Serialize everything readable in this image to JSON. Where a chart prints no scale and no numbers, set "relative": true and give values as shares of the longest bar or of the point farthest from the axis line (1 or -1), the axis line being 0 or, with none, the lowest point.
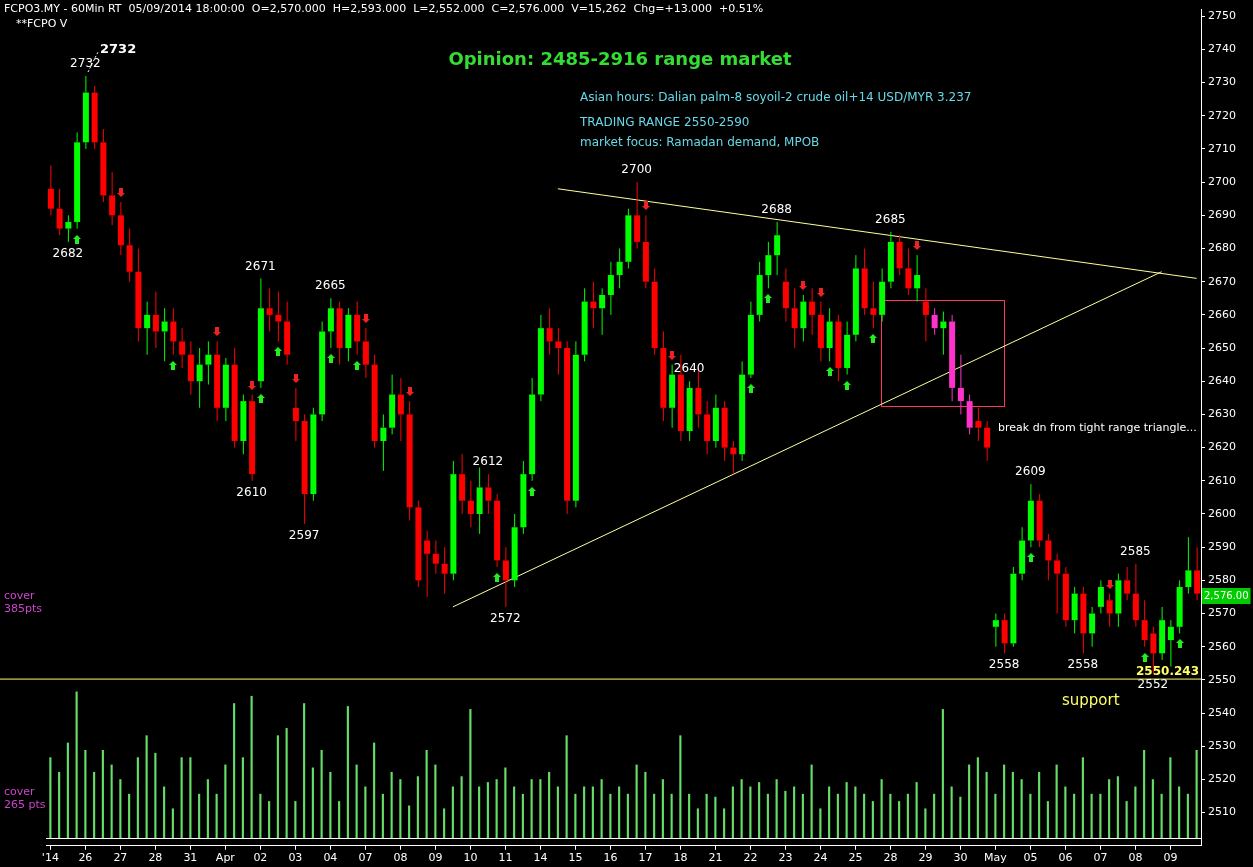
{
  "chart_data": [
    {
      "type": "candlestick",
      "title": "Opinion: 2485-2916 range market",
      "subtitle": "FCPO3.MY - 60Min RT  05/09/2014 18:00:00  O=2,570.000  H=2,593.000  L=2,552.000  C=2,576.000  V=15,262  Chg=+13.000  +0.51%",
      "categories": [
        "'14",
        null,
        null,
        null,
        "26",
        null,
        null,
        null,
        "27",
        null,
        null,
        null,
        "28",
        null,
        null,
        null,
        "31",
        null,
        null,
        null,
        "Apr",
        null,
        null,
        null,
        "02",
        null,
        null,
        null,
        "03",
        null,
        null,
        null,
        "04",
        null,
        null,
        null,
        "07",
        null,
        null,
        null,
        "08",
        null,
        null,
        null,
        "09",
        null,
        null,
        null,
        "10",
        null,
        null,
        null,
        "11",
        null,
        null,
        null,
        "14",
        null,
        null,
        null,
        "15",
        null,
        null,
        null,
        "16",
        null,
        null,
        null,
        "17",
        null,
        null,
        null,
        "18",
        null,
        null,
        null,
        "21",
        null,
        null,
        null,
        "22",
        null,
        null,
        null,
        "23",
        null,
        null,
        null,
        "24",
        null,
        null,
        null,
        "25",
        null,
        null,
        null,
        "28",
        null,
        null,
        null,
        "29",
        null,
        null,
        null,
        "30",
        null,
        null,
        null,
        "May",
        null,
        null,
        null,
        "05",
        null,
        null,
        null,
        "06",
        null,
        null,
        null,
        "07",
        null,
        null,
        null,
        "08",
        null,
        null,
        null,
        "09",
        null,
        null,
        null
      ],
      "ohlc": [
        [
          2698,
          2705,
          2690,
          2692
        ],
        [
          2692,
          2698,
          2684,
          2686
        ],
        [
          2686,
          2690,
          2682,
          2688
        ],
        [
          2688,
          2715,
          2686,
          2712
        ],
        [
          2712,
          2732,
          2710,
          2727
        ],
        [
          2727,
          2729,
          2710,
          2712
        ],
        [
          2712,
          2716,
          2694,
          2696
        ],
        [
          2696,
          2703,
          2687,
          2690
        ],
        [
          2690,
          2694,
          2678,
          2681
        ],
        [
          2681,
          2686,
          2670,
          2673
        ],
        [
          2673,
          2680,
          2652,
          2656
        ],
        [
          2656,
          2664,
          2648,
          2660
        ],
        [
          2660,
          2667,
          2650,
          2655
        ],
        [
          2655,
          2662,
          2646,
          2658
        ],
        [
          2658,
          2662,
          2648,
          2652
        ],
        [
          2652,
          2656,
          2644,
          2648
        ],
        [
          2648,
          2652,
          2636,
          2640
        ],
        [
          2640,
          2650,
          2632,
          2645
        ],
        [
          2645,
          2652,
          2639,
          2648
        ],
        [
          2648,
          2652,
          2628,
          2632
        ],
        [
          2632,
          2647,
          2628,
          2645
        ],
        [
          2645,
          2650,
          2620,
          2622
        ],
        [
          2622,
          2636,
          2618,
          2634
        ],
        [
          2634,
          2636,
          2610,
          2612
        ],
        [
          2640,
          2671,
          2638,
          2662
        ],
        [
          2662,
          2668,
          2655,
          2660
        ],
        [
          2660,
          2667,
          2652,
          2658
        ],
        [
          2658,
          2664,
          2645,
          2648
        ],
        [
          2632,
          2638,
          2622,
          2628
        ],
        [
          2628,
          2630,
          2597,
          2606
        ],
        [
          2606,
          2632,
          2604,
          2630
        ],
        [
          2630,
          2658,
          2628,
          2655
        ],
        [
          2655,
          2665,
          2650,
          2662
        ],
        [
          2662,
          2664,
          2645,
          2650
        ],
        [
          2650,
          2662,
          2646,
          2660
        ],
        [
          2660,
          2664,
          2648,
          2652
        ],
        [
          2652,
          2656,
          2641,
          2645
        ],
        [
          2645,
          2648,
          2620,
          2622
        ],
        [
          2622,
          2630,
          2613,
          2626
        ],
        [
          2626,
          2642,
          2624,
          2636
        ],
        [
          2636,
          2641,
          2622,
          2630
        ],
        [
          2630,
          2634,
          2598,
          2602
        ],
        [
          2602,
          2604,
          2578,
          2580
        ],
        [
          2592,
          2595,
          2575,
          2588
        ],
        [
          2588,
          2592,
          2582,
          2585
        ],
        [
          2585,
          2590,
          2576,
          2582
        ],
        [
          2582,
          2616,
          2580,
          2612
        ],
        [
          2612,
          2618,
          2600,
          2604
        ],
        [
          2604,
          2610,
          2596,
          2600
        ],
        [
          2600,
          2614,
          2594,
          2608
        ],
        [
          2608,
          2612,
          2600,
          2604
        ],
        [
          2604,
          2606,
          2584,
          2586
        ],
        [
          2586,
          2590,
          2572,
          2580
        ],
        [
          2580,
          2600,
          2578,
          2596
        ],
        [
          2596,
          2616,
          2594,
          2612
        ],
        [
          2612,
          2641,
          2610,
          2636
        ],
        [
          2636,
          2660,
          2634,
          2656
        ],
        [
          2656,
          2662,
          2648,
          2652
        ],
        [
          2652,
          2656,
          2642,
          2650
        ],
        [
          2650,
          2652,
          2600,
          2604
        ],
        [
          2604,
          2652,
          2602,
          2648
        ],
        [
          2648,
          2668,
          2646,
          2664
        ],
        [
          2664,
          2670,
          2656,
          2662
        ],
        [
          2662,
          2668,
          2654,
          2666
        ],
        [
          2666,
          2676,
          2660,
          2672
        ],
        [
          2672,
          2680,
          2668,
          2676
        ],
        [
          2676,
          2692,
          2674,
          2690
        ],
        [
          2690,
          2700,
          2680,
          2682
        ],
        [
          2682,
          2690,
          2668,
          2670
        ],
        [
          2670,
          2674,
          2648,
          2650
        ],
        [
          2650,
          2655,
          2628,
          2632
        ],
        [
          2632,
          2645,
          2626,
          2642
        ],
        [
          2642,
          2648,
          2622,
          2625
        ],
        [
          2625,
          2640,
          2622,
          2638
        ],
        [
          2638,
          2644,
          2626,
          2630
        ],
        [
          2630,
          2634,
          2618,
          2622
        ],
        [
          2622,
          2636,
          2620,
          2632
        ],
        [
          2632,
          2634,
          2616,
          2620
        ],
        [
          2620,
          2622,
          2612,
          2618
        ],
        [
          2618,
          2646,
          2616,
          2642
        ],
        [
          2642,
          2664,
          2641,
          2660
        ],
        [
          2660,
          2676,
          2658,
          2672
        ],
        [
          2672,
          2682,
          2668,
          2678
        ],
        [
          2678,
          2688,
          2672,
          2684
        ],
        [
          2670,
          2674,
          2658,
          2662
        ],
        [
          2662,
          2668,
          2650,
          2656
        ],
        [
          2656,
          2666,
          2652,
          2664
        ],
        [
          2664,
          2668,
          2654,
          2660
        ],
        [
          2660,
          2664,
          2646,
          2650
        ],
        [
          2650,
          2662,
          2646,
          2658
        ],
        [
          2658,
          2660,
          2640,
          2644
        ],
        [
          2644,
          2658,
          2642,
          2654
        ],
        [
          2654,
          2678,
          2652,
          2674
        ],
        [
          2674,
          2680,
          2660,
          2662
        ],
        [
          2662,
          2670,
          2656,
          2660
        ],
        [
          2660,
          2674,
          2658,
          2670
        ],
        [
          2670,
          2685,
          2668,
          2682
        ],
        [
          2682,
          2684,
          2672,
          2674
        ],
        [
          2674,
          2680,
          2666,
          2668
        ],
        [
          2668,
          2678,
          2664,
          2672
        ],
        [
          2664,
          2668,
          2652,
          2660
        ],
        [
          2660,
          2662,
          2654,
          2656
        ],
        [
          2656,
          2661,
          2648,
          2658
        ],
        [
          2658,
          2660,
          2634,
          2638
        ],
        [
          2638,
          2648,
          2630,
          2634
        ],
        [
          2634,
          2636,
          2624,
          2626
        ],
        [
          2628,
          2632,
          2622,
          2626
        ],
        [
          2626,
          2628,
          2616,
          2620
        ],
        [
          2566,
          2570,
          2560,
          2568
        ],
        [
          2568,
          2570,
          2558,
          2561
        ],
        [
          2561,
          2584,
          2560,
          2582
        ],
        [
          2582,
          2596,
          2580,
          2592
        ],
        [
          2592,
          2609,
          2590,
          2604
        ],
        [
          2604,
          2606,
          2590,
          2592
        ],
        [
          2592,
          2594,
          2580,
          2586
        ],
        [
          2586,
          2588,
          2570,
          2582
        ],
        [
          2582,
          2584,
          2566,
          2568
        ],
        [
          2568,
          2578,
          2564,
          2576
        ],
        [
          2576,
          2578,
          2558,
          2564
        ],
        [
          2564,
          2572,
          2560,
          2570
        ],
        [
          2572,
          2580,
          2570,
          2578
        ],
        [
          2574,
          2576,
          2566,
          2570
        ],
        [
          2570,
          2582,
          2566,
          2580
        ],
        [
          2580,
          2584,
          2574,
          2576
        ],
        [
          2576,
          2585,
          2566,
          2568
        ],
        [
          2568,
          2574,
          2560,
          2562
        ],
        [
          2564,
          2566,
          2552,
          2558
        ],
        [
          2558,
          2572,
          2556,
          2568
        ],
        [
          2562,
          2568,
          2554,
          2566
        ],
        [
          2566,
          2580,
          2564,
          2578
        ],
        [
          2578,
          2593,
          2576,
          2583
        ],
        [
          2583,
          2590,
          2574,
          2576
        ]
      ],
      "colors": [
        "#ff0000",
        "#ff0000",
        "#00ff00",
        "#00ff00",
        "#00ff00",
        "#ff0000",
        "#ff0000",
        "#ff0000",
        "#ff0000",
        "#ff0000",
        "#ff0000",
        "#00ff00",
        "#ff0000",
        "#00ff00",
        "#ff0000",
        "#ff0000",
        "#ff0000",
        "#00ff00",
        "#00ff00",
        "#ff0000",
        "#00ff00",
        "#ff0000",
        "#00ff00",
        "#ff0000",
        "#00ff00",
        "#ff0000",
        "#ff0000",
        "#ff0000",
        "#ff0000",
        "#ff0000",
        "#00ff00",
        "#00ff00",
        "#00ff00",
        "#ff0000",
        "#00ff00",
        "#ff0000",
        "#ff0000",
        "#ff0000",
        "#00ff00",
        "#00ff00",
        "#ff0000",
        "#ff0000",
        "#ff0000",
        "#ff0000",
        "#ff0000",
        "#ff0000",
        "#00ff00",
        "#ff0000",
        "#ff0000",
        "#00ff00",
        "#ff0000",
        "#ff0000",
        "#ff0000",
        "#00ff00",
        "#00ff00",
        "#00ff00",
        "#00ff00",
        "#ff0000",
        "#ff0000",
        "#ff0000",
        "#00ff00",
        "#00ff00",
        "#ff0000",
        "#00ff00",
        "#00ff00",
        "#00ff00",
        "#00ff00",
        "#ff0000",
        "#ff0000",
        "#ff0000",
        "#ff0000",
        "#00ff00",
        "#ff0000",
        "#00ff00",
        "#ff0000",
        "#ff0000",
        "#00ff00",
        "#ff0000",
        "#ff0000",
        "#00ff00",
        "#00ff00",
        "#00ff00",
        "#00ff00",
        "#00ff00",
        "#ff0000",
        "#ff0000",
        "#00ff00",
        "#ff0000",
        "#ff0000",
        "#00ff00",
        "#ff0000",
        "#00ff00",
        "#00ff00",
        "#ff0000",
        "#ff0000",
        "#00ff00",
        "#00ff00",
        "#ff0000",
        "#ff0000",
        "#00ff00",
        "#ff0000",
        "#ff33cc",
        "#00ff00",
        "#ff33cc",
        "#ff33cc",
        "#ff33cc",
        "#ff0000",
        "#ff0000",
        "#00ff00",
        "#ff0000",
        "#00ff00",
        "#00ff00",
        "#00ff00",
        "#ff0000",
        "#ff0000",
        "#ff0000",
        "#ff0000",
        "#00ff00",
        "#ff0000",
        "#00ff00",
        "#00ff00",
        "#ff0000",
        "#00ff00",
        "#ff0000",
        "#ff0000",
        "#ff0000",
        "#ff0000",
        "#00ff00",
        "#00ff00",
        "#00ff00",
        "#00ff00",
        "#ff0000"
      ],
      "series": [
        {
          "type": "line",
          "color": "#ffff99",
          "values": [
            null,
            null,
            null,
            null,
            null,
            null,
            null,
            null,
            null,
            null,
            null,
            null,
            null,
            null,
            null,
            null,
            null,
            null,
            null,
            null,
            null,
            null,
            null,
            null,
            null,
            null,
            null,
            null,
            null,
            null,
            null,
            null,
            null,
            null,
            null,
            null,
            null,
            null,
            null,
            null,
            null,
            null,
            null,
            null,
            null,
            null,
            null,
            null,
            null,
            null,
            null,
            null,
            null,
            null,
            null,
            null,
            null,
            null,
            2698,
            null,
            null,
            null,
            null,
            null,
            null,
            null,
            null,
            null,
            null,
            null,
            null,
            null,
            null,
            null,
            null,
            null,
            null,
            null,
            null,
            null,
            null,
            null,
            null,
            null,
            null,
            null,
            null,
            null,
            null,
            null,
            null,
            null,
            null,
            null,
            null,
            null,
            null,
            null,
            null,
            null,
            null,
            null,
            null,
            null,
            null,
            null,
            null,
            null,
            null,
            null,
            null,
            null,
            null,
            null,
            null,
            null,
            null,
            null,
            null,
            null,
            null,
            null,
            null,
            null,
            null,
            null,
            null,
            null,
            null,
            null,
            null,
            2671
          ]
        },
        {
          "type": "line",
          "color": "#ffff99",
          "values": [
            null,
            null,
            null,
            null,
            null,
            null,
            null,
            null,
            null,
            null,
            null,
            null,
            null,
            null,
            null,
            null,
            null,
            null,
            null,
            null,
            null,
            null,
            null,
            null,
            null,
            null,
            null,
            null,
            null,
            null,
            null,
            null,
            null,
            null,
            null,
            null,
            null,
            null,
            null,
            null,
            null,
            null,
            null,
            null,
            null,
            null,
            2572,
            null,
            null,
            null,
            null,
            null,
            null,
            null,
            null,
            null,
            null,
            null,
            null,
            null,
            null,
            null,
            null,
            null,
            null,
            null,
            null,
            null,
            null,
            null,
            null,
            null,
            null,
            null,
            null,
            null,
            null,
            null,
            null,
            null,
            null,
            null,
            null,
            null,
            null,
            null,
            null,
            null,
            null,
            null,
            null,
            null,
            null,
            null,
            null,
            null,
            null,
            null,
            null,
            null,
            null,
            null,
            null,
            null,
            null,
            null,
            null,
            null,
            null,
            null,
            null,
            null,
            null,
            null,
            null,
            null,
            null,
            null,
            null,
            null,
            null,
            null,
            null,
            null,
            null,
            null,
            null,
            2673,
            null,
            null,
            null,
            null
          ]
        }
      ],
      "marker": "none",
      "ylim": [
        2500,
        2752
      ],
      "yticks": [
        2510,
        2520,
        2530,
        2540,
        2550,
        2560,
        2570,
        2580,
        2590,
        2600,
        2610,
        2620,
        2630,
        2640,
        2650,
        2660,
        2670,
        2680,
        2690,
        2700,
        2710,
        2720,
        2730,
        2740,
        2750
      ],
      "ref_lines": [
        {
          "axis": "y",
          "value": 2550.243,
          "label": "2550.243",
          "color": "#ffff66"
        }
      ],
      "annotations": [
        "**FCPO V",
        "Asian hours: Dalian palm-8 soyoil-2 crude oil+14 USD/MYR 3.237",
        "TRADING RANGE 2550-2590",
        "market focus: Ramadan demand, MPOB",
        "break dn from tight range triangle...",
        "cover 385pts",
        "cover 265 pts",
        "support",
        "2,576.00",
        "2732",
        {
          "text": "2732",
          "y": 2732
        },
        {
          "text": "2682",
          "y": 2682
        },
        {
          "text": "2671",
          "y": 2671
        },
        {
          "text": "2610",
          "y": 2610
        },
        {
          "text": "2665",
          "y": 2665
        },
        {
          "text": "2597",
          "y": 2597
        },
        {
          "text": "2572",
          "y": 2572
        },
        {
          "text": "2700",
          "y": 2700
        },
        {
          "text": "2612",
          "y": 2612
        },
        {
          "text": "2688",
          "y": 2688
        },
        {
          "text": "2640",
          "y": 2640
        },
        {
          "text": "2685",
          "y": 2685
        },
        {
          "text": "2558",
          "y": 2558
        },
        {
          "text": "2609",
          "y": 2609
        },
        {
          "text": "2558",
          "y": 2558
        },
        {
          "text": "2585",
          "y": 2585
        },
        {
          "text": "2552",
          "y": 2552
        }
      ]
    },
    {
      "type": "bar",
      "relative": true,
      "color": "#66dd66",
      "categories": [
        null,
        null,
        null,
        null,
        null,
        null,
        null,
        null,
        null,
        null,
        null,
        null,
        null,
        null,
        null,
        null,
        null,
        null,
        null,
        null,
        null,
        null,
        null,
        null,
        null,
        null,
        null,
        null,
        null,
        null,
        null,
        null,
        null,
        null,
        null,
        null,
        null,
        null,
        null,
        null,
        null,
        null,
        null,
        null,
        null,
        null,
        null,
        null,
        null,
        null,
        null,
        null,
        null,
        null,
        null,
        null,
        null,
        null,
        null,
        null,
        null,
        null,
        null,
        null,
        null,
        null,
        null,
        null,
        null,
        null,
        null,
        null,
        null,
        null,
        null,
        null,
        null,
        null,
        null,
        null,
        null,
        null,
        null,
        null,
        null,
        null,
        null,
        null,
        null,
        null,
        null,
        null,
        null,
        null,
        null,
        null,
        null,
        null,
        null,
        null,
        null,
        null,
        null,
        null,
        null,
        null,
        null,
        null,
        null,
        null,
        null,
        null,
        null,
        null,
        null,
        null,
        null,
        null,
        null,
        null,
        null,
        null,
        null,
        null,
        null,
        null,
        null,
        null,
        null,
        null,
        null,
        null
      ],
      "values": [
        0.55,
        0.45,
        0.65,
        1.0,
        0.6,
        0.45,
        0.6,
        0.5,
        0.4,
        0.3,
        0.55,
        0.7,
        0.58,
        0.35,
        0.2,
        0.55,
        0.55,
        0.3,
        0.4,
        0.3,
        0.5,
        0.92,
        0.55,
        0.97,
        0.3,
        0.25,
        0.7,
        0.75,
        0.25,
        0.92,
        0.48,
        0.6,
        0.45,
        0.25,
        0.9,
        0.5,
        0.35,
        0.65,
        0.3,
        0.45,
        0.4,
        0.22,
        0.42,
        0.6,
        0.5,
        0.2,
        0.35,
        0.42,
        0.88,
        0.35,
        0.38,
        0.4,
        0.48,
        0.35,
        0.3,
        0.4,
        0.4,
        0.45,
        0.35,
        0.7,
        0.3,
        0.35,
        0.35,
        0.4,
        0.3,
        0.35,
        0.3,
        0.5,
        0.45,
        0.3,
        0.4,
        0.3,
        0.7,
        0.3,
        0.2,
        0.3,
        0.28,
        0.2,
        0.35,
        0.4,
        0.35,
        0.38,
        0.3,
        0.4,
        0.32,
        0.35,
        0.3,
        0.5,
        0.2,
        0.35,
        0.3,
        0.38,
        0.35,
        0.3,
        0.25,
        0.4,
        0.3,
        0.25,
        0.3,
        0.38,
        0.2,
        0.3,
        0.88,
        0.35,
        0.28,
        0.5,
        0.55,
        0.45,
        0.3,
        0.5,
        0.45,
        0.4,
        0.3,
        0.45,
        0.25,
        0.5,
        0.35,
        0.3,
        0.55,
        0.3,
        0.3,
        0.4,
        0.42,
        0.25,
        0.35,
        0.6,
        0.4,
        0.3,
        0.55,
        0.35,
        0.3,
        0.6
      ]
    }
  ]
}
